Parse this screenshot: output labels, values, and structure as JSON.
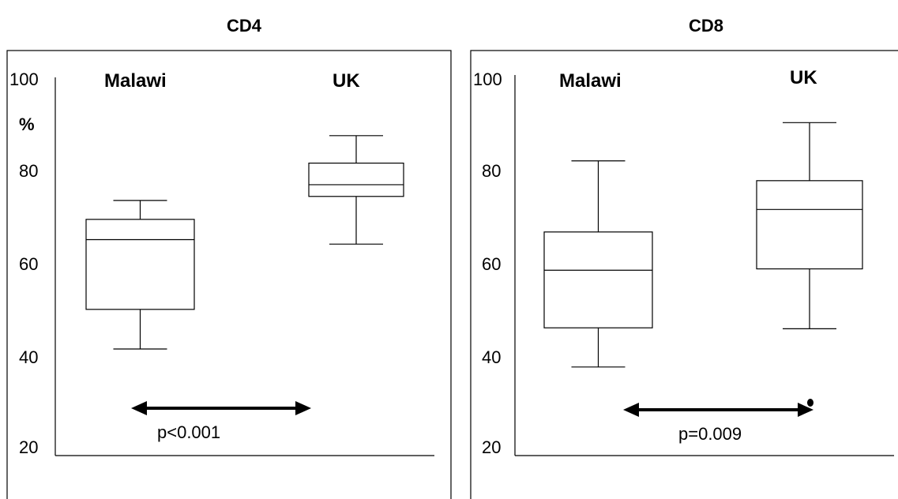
{
  "chart_data": [
    {
      "type": "box",
      "title": "CD4",
      "ylabel": "%",
      "ylim": [
        20,
        100
      ],
      "yticks": [
        "20",
        "40",
        "60",
        "80",
        "100"
      ],
      "categories": [
        "Malawi",
        "UK"
      ],
      "boxes": [
        {
          "category": "Malawi",
          "min": 40,
          "q1": 48.8,
          "median": 64.3,
          "q3": 68.8,
          "max": 73
        },
        {
          "category": "UK",
          "min": 63.3,
          "q1": 73.9,
          "median": 76.5,
          "q3": 81.3,
          "max": 87.4
        }
      ],
      "annotation": "p<0.001"
    },
    {
      "type": "box",
      "title": "CD8",
      "ylabel": "",
      "ylim": [
        20,
        100
      ],
      "yticks": [
        "20",
        "40",
        "60",
        "80",
        "100"
      ],
      "categories": [
        "Malawi",
        "UK"
      ],
      "boxes": [
        {
          "category": "Malawi",
          "min": 36,
          "q1": 44.7,
          "median": 57.5,
          "q3": 66,
          "max": 81.8
        },
        {
          "category": "UK",
          "min": 44.5,
          "q1": 57.8,
          "median": 71,
          "q3": 77.4,
          "max": 90.3
        }
      ],
      "annotation": "p=0.009"
    }
  ]
}
